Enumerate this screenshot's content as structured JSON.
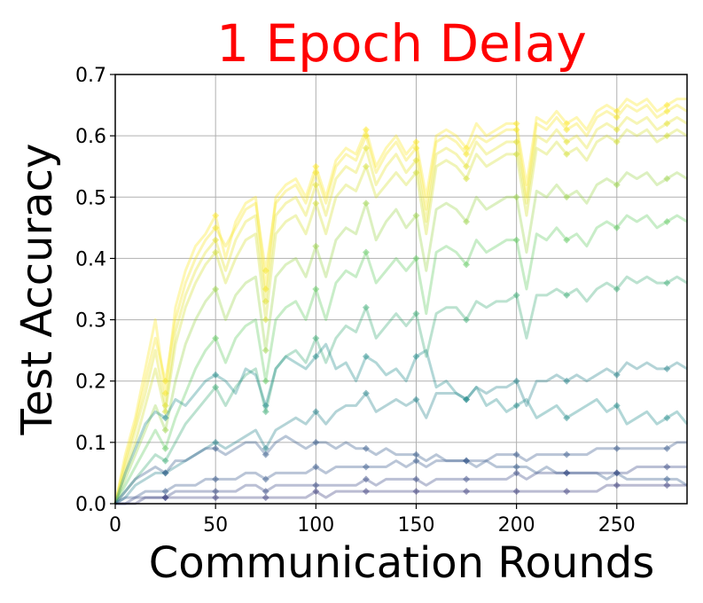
{
  "chart_data": {
    "type": "line",
    "title": "1 Epoch Delay",
    "title_color": "#ff0000",
    "xlabel": "Communication Rounds",
    "ylabel": "Test Accuracy",
    "xlim": [
      0,
      285
    ],
    "ylim": [
      0,
      0.7
    ],
    "x_ticks": [
      0,
      50,
      100,
      150,
      200,
      250
    ],
    "y_ticks": [
      0.0,
      0.1,
      0.2,
      0.3,
      0.4,
      0.5,
      0.6,
      0.7
    ],
    "x_tick_labels": [
      "0",
      "50",
      "100",
      "150",
      "200",
      "250"
    ],
    "y_tick_labels": [
      "0.0",
      "0.1",
      "0.2",
      "0.3",
      "0.4",
      "0.5",
      "0.6",
      "0.7"
    ],
    "grid": true,
    "colormap": "viridis",
    "line_alpha": 0.25,
    "x": [
      0,
      5,
      10,
      15,
      20,
      25,
      30,
      35,
      40,
      45,
      50,
      55,
      60,
      65,
      70,
      75,
      80,
      85,
      90,
      95,
      100,
      105,
      110,
      115,
      120,
      125,
      130,
      135,
      140,
      145,
      150,
      155,
      160,
      165,
      170,
      175,
      180,
      185,
      190,
      195,
      200,
      205,
      210,
      215,
      220,
      225,
      230,
      235,
      240,
      245,
      250,
      255,
      260,
      265,
      270,
      275,
      280,
      285
    ],
    "series": [
      {
        "values": [
          0.0,
          0.08,
          0.14,
          0.22,
          0.3,
          0.18,
          0.32,
          0.38,
          0.42,
          0.44,
          0.47,
          0.4,
          0.46,
          0.49,
          0.5,
          0.35,
          0.5,
          0.52,
          0.53,
          0.5,
          0.55,
          0.5,
          0.56,
          0.58,
          0.57,
          0.61,
          0.55,
          0.58,
          0.6,
          0.57,
          0.59,
          0.5,
          0.6,
          0.61,
          0.6,
          0.58,
          0.62,
          0.6,
          0.61,
          0.62,
          0.62,
          0.52,
          0.63,
          0.62,
          0.64,
          0.62,
          0.63,
          0.61,
          0.64,
          0.65,
          0.64,
          0.66,
          0.65,
          0.66,
          0.64,
          0.65,
          0.66,
          0.66
        ]
      },
      {
        "values": [
          0.0,
          0.07,
          0.13,
          0.2,
          0.27,
          0.2,
          0.3,
          0.36,
          0.4,
          0.43,
          0.45,
          0.42,
          0.45,
          0.48,
          0.49,
          0.38,
          0.49,
          0.51,
          0.52,
          0.49,
          0.54,
          0.49,
          0.55,
          0.57,
          0.56,
          0.6,
          0.54,
          0.57,
          0.59,
          0.56,
          0.58,
          0.48,
          0.59,
          0.6,
          0.59,
          0.57,
          0.6,
          0.59,
          0.6,
          0.61,
          0.61,
          0.5,
          0.62,
          0.61,
          0.63,
          0.61,
          0.62,
          0.6,
          0.63,
          0.64,
          0.63,
          0.65,
          0.64,
          0.65,
          0.63,
          0.64,
          0.65,
          0.64
        ]
      },
      {
        "values": [
          0.0,
          0.06,
          0.12,
          0.18,
          0.25,
          0.16,
          0.28,
          0.34,
          0.38,
          0.41,
          0.43,
          0.38,
          0.43,
          0.46,
          0.47,
          0.33,
          0.47,
          0.49,
          0.5,
          0.47,
          0.52,
          0.47,
          0.53,
          0.55,
          0.54,
          0.58,
          0.52,
          0.55,
          0.57,
          0.54,
          0.56,
          0.46,
          0.57,
          0.58,
          0.57,
          0.55,
          0.59,
          0.57,
          0.58,
          0.59,
          0.59,
          0.49,
          0.6,
          0.59,
          0.61,
          0.59,
          0.6,
          0.58,
          0.61,
          0.62,
          0.61,
          0.63,
          0.62,
          0.63,
          0.61,
          0.62,
          0.63,
          0.62
        ]
      },
      {
        "values": [
          0.0,
          0.05,
          0.1,
          0.16,
          0.22,
          0.15,
          0.26,
          0.32,
          0.36,
          0.39,
          0.41,
          0.36,
          0.4,
          0.43,
          0.44,
          0.3,
          0.44,
          0.46,
          0.47,
          0.44,
          0.49,
          0.44,
          0.5,
          0.52,
          0.51,
          0.55,
          0.5,
          0.52,
          0.54,
          0.52,
          0.54,
          0.44,
          0.55,
          0.56,
          0.55,
          0.53,
          0.57,
          0.55,
          0.56,
          0.57,
          0.57,
          0.47,
          0.58,
          0.57,
          0.59,
          0.57,
          0.58,
          0.56,
          0.59,
          0.6,
          0.59,
          0.61,
          0.6,
          0.61,
          0.59,
          0.6,
          0.61,
          0.6
        ]
      },
      {
        "values": [
          0.0,
          0.04,
          0.08,
          0.12,
          0.16,
          0.12,
          0.2,
          0.26,
          0.3,
          0.33,
          0.35,
          0.3,
          0.34,
          0.36,
          0.37,
          0.25,
          0.37,
          0.39,
          0.4,
          0.37,
          0.42,
          0.37,
          0.43,
          0.45,
          0.44,
          0.49,
          0.43,
          0.46,
          0.48,
          0.45,
          0.47,
          0.38,
          0.48,
          0.49,
          0.48,
          0.46,
          0.5,
          0.48,
          0.49,
          0.5,
          0.5,
          0.41,
          0.51,
          0.5,
          0.52,
          0.5,
          0.51,
          0.49,
          0.52,
          0.53,
          0.52,
          0.54,
          0.53,
          0.54,
          0.52,
          0.53,
          0.54,
          0.53
        ]
      },
      {
        "values": [
          0.0,
          0.03,
          0.06,
          0.09,
          0.12,
          0.09,
          0.14,
          0.18,
          0.22,
          0.25,
          0.27,
          0.23,
          0.27,
          0.29,
          0.3,
          0.2,
          0.3,
          0.32,
          0.33,
          0.3,
          0.35,
          0.3,
          0.36,
          0.38,
          0.37,
          0.41,
          0.36,
          0.38,
          0.4,
          0.38,
          0.4,
          0.31,
          0.41,
          0.42,
          0.41,
          0.39,
          0.43,
          0.41,
          0.42,
          0.43,
          0.43,
          0.35,
          0.44,
          0.43,
          0.45,
          0.43,
          0.44,
          0.42,
          0.45,
          0.46,
          0.45,
          0.47,
          0.46,
          0.47,
          0.45,
          0.46,
          0.47,
          0.46
        ]
      },
      {
        "values": [
          0.0,
          0.02,
          0.04,
          0.06,
          0.08,
          0.07,
          0.1,
          0.13,
          0.15,
          0.17,
          0.19,
          0.16,
          0.19,
          0.21,
          0.22,
          0.15,
          0.22,
          0.24,
          0.25,
          0.23,
          0.27,
          0.23,
          0.27,
          0.29,
          0.28,
          0.32,
          0.27,
          0.29,
          0.31,
          0.29,
          0.31,
          0.24,
          0.31,
          0.32,
          0.32,
          0.3,
          0.33,
          0.32,
          0.33,
          0.33,
          0.34,
          0.27,
          0.34,
          0.34,
          0.35,
          0.34,
          0.35,
          0.33,
          0.35,
          0.36,
          0.35,
          0.37,
          0.36,
          0.37,
          0.36,
          0.36,
          0.37,
          0.36
        ]
      },
      {
        "values": [
          0.0,
          0.01,
          0.03,
          0.04,
          0.05,
          0.05,
          0.06,
          0.07,
          0.08,
          0.09,
          0.1,
          0.09,
          0.1,
          0.11,
          0.12,
          0.09,
          0.12,
          0.13,
          0.14,
          0.13,
          0.15,
          0.13,
          0.15,
          0.16,
          0.16,
          0.18,
          0.15,
          0.16,
          0.17,
          0.16,
          0.17,
          0.14,
          0.18,
          0.18,
          0.18,
          0.17,
          0.19,
          0.18,
          0.19,
          0.19,
          0.2,
          0.16,
          0.2,
          0.2,
          0.21,
          0.2,
          0.21,
          0.2,
          0.21,
          0.22,
          0.21,
          0.23,
          0.22,
          0.23,
          0.22,
          0.22,
          0.23,
          0.22
        ]
      },
      {
        "values": [
          0.0,
          0.05,
          0.09,
          0.13,
          0.15,
          0.14,
          0.17,
          0.16,
          0.18,
          0.2,
          0.21,
          0.2,
          0.18,
          0.22,
          0.21,
          0.16,
          0.22,
          0.24,
          0.23,
          0.22,
          0.24,
          0.26,
          0.22,
          0.23,
          0.2,
          0.24,
          0.23,
          0.21,
          0.22,
          0.2,
          0.24,
          0.25,
          0.19,
          0.2,
          0.18,
          0.17,
          0.19,
          0.16,
          0.17,
          0.15,
          0.16,
          0.17,
          0.14,
          0.15,
          0.16,
          0.14,
          0.15,
          0.16,
          0.17,
          0.15,
          0.16,
          0.13,
          0.14,
          0.15,
          0.13,
          0.14,
          0.15,
          0.13
        ]
      },
      {
        "values": [
          0.0,
          0.02,
          0.04,
          0.05,
          0.06,
          0.05,
          0.07,
          0.07,
          0.08,
          0.09,
          0.09,
          0.08,
          0.09,
          0.1,
          0.1,
          0.08,
          0.1,
          0.11,
          0.1,
          0.09,
          0.1,
          0.1,
          0.09,
          0.1,
          0.09,
          0.09,
          0.08,
          0.09,
          0.08,
          0.08,
          0.08,
          0.07,
          0.08,
          0.07,
          0.07,
          0.07,
          0.06,
          0.07,
          0.06,
          0.06,
          0.06,
          0.06,
          0.05,
          0.06,
          0.05,
          0.05,
          0.05,
          0.05,
          0.05,
          0.04,
          0.05,
          0.04,
          0.04,
          0.04,
          0.04,
          0.04,
          0.04,
          0.03
        ]
      },
      {
        "values": [
          0.0,
          0.01,
          0.01,
          0.02,
          0.02,
          0.02,
          0.03,
          0.03,
          0.03,
          0.04,
          0.04,
          0.04,
          0.04,
          0.05,
          0.05,
          0.04,
          0.05,
          0.05,
          0.05,
          0.05,
          0.06,
          0.05,
          0.06,
          0.06,
          0.06,
          0.06,
          0.06,
          0.06,
          0.07,
          0.06,
          0.07,
          0.06,
          0.07,
          0.07,
          0.07,
          0.07,
          0.07,
          0.07,
          0.08,
          0.08,
          0.08,
          0.07,
          0.08,
          0.08,
          0.08,
          0.08,
          0.08,
          0.08,
          0.09,
          0.09,
          0.09,
          0.09,
          0.09,
          0.09,
          0.09,
          0.09,
          0.1,
          0.1
        ]
      },
      {
        "values": [
          0.0,
          0.0,
          0.01,
          0.01,
          0.01,
          0.01,
          0.02,
          0.02,
          0.02,
          0.02,
          0.02,
          0.02,
          0.02,
          0.03,
          0.03,
          0.02,
          0.03,
          0.03,
          0.03,
          0.03,
          0.03,
          0.03,
          0.03,
          0.03,
          0.03,
          0.04,
          0.03,
          0.04,
          0.04,
          0.04,
          0.04,
          0.03,
          0.04,
          0.04,
          0.04,
          0.04,
          0.04,
          0.04,
          0.04,
          0.04,
          0.05,
          0.04,
          0.05,
          0.05,
          0.05,
          0.05,
          0.05,
          0.05,
          0.05,
          0.05,
          0.05,
          0.05,
          0.06,
          0.06,
          0.06,
          0.06,
          0.06,
          0.06
        ]
      },
      {
        "values": [
          0.0,
          0.0,
          0.0,
          0.01,
          0.01,
          0.01,
          0.01,
          0.01,
          0.01,
          0.01,
          0.01,
          0.01,
          0.01,
          0.01,
          0.01,
          0.01,
          0.01,
          0.01,
          0.01,
          0.01,
          0.02,
          0.01,
          0.02,
          0.02,
          0.02,
          0.02,
          0.02,
          0.02,
          0.02,
          0.02,
          0.02,
          0.02,
          0.02,
          0.02,
          0.02,
          0.02,
          0.02,
          0.02,
          0.02,
          0.02,
          0.02,
          0.02,
          0.02,
          0.02,
          0.02,
          0.02,
          0.02,
          0.02,
          0.02,
          0.03,
          0.03,
          0.03,
          0.03,
          0.03,
          0.03,
          0.03,
          0.03,
          0.03
        ]
      }
    ]
  }
}
